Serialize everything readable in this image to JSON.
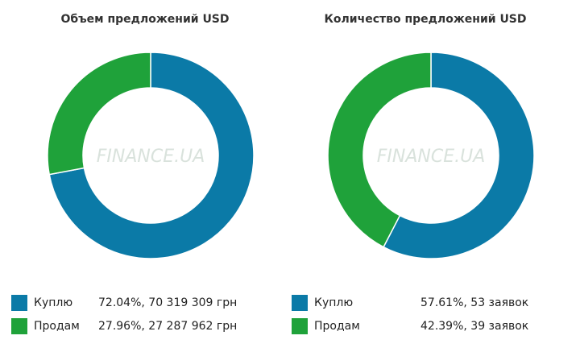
{
  "colors": {
    "buy": "#0b7aa7",
    "sell": "#1fa23a"
  },
  "watermark": "FINANCE.UA",
  "chart_data": [
    {
      "type": "pie",
      "title": "Объем предложений USD",
      "categories": [
        "Куплю",
        "Продам"
      ],
      "values": [
        72.04,
        27.96
      ],
      "value_labels": [
        "72.04%, 70 319 309 грн",
        "27.96%, 27 287 962 грн"
      ],
      "legend": "bottom"
    },
    {
      "type": "pie",
      "title": "Количество предложений USD",
      "categories": [
        "Куплю",
        "Продам"
      ],
      "values": [
        57.61,
        42.39
      ],
      "value_labels": [
        "57.61%, 53 заявок",
        "42.39%, 39 заявок"
      ],
      "legend": "bottom"
    }
  ]
}
